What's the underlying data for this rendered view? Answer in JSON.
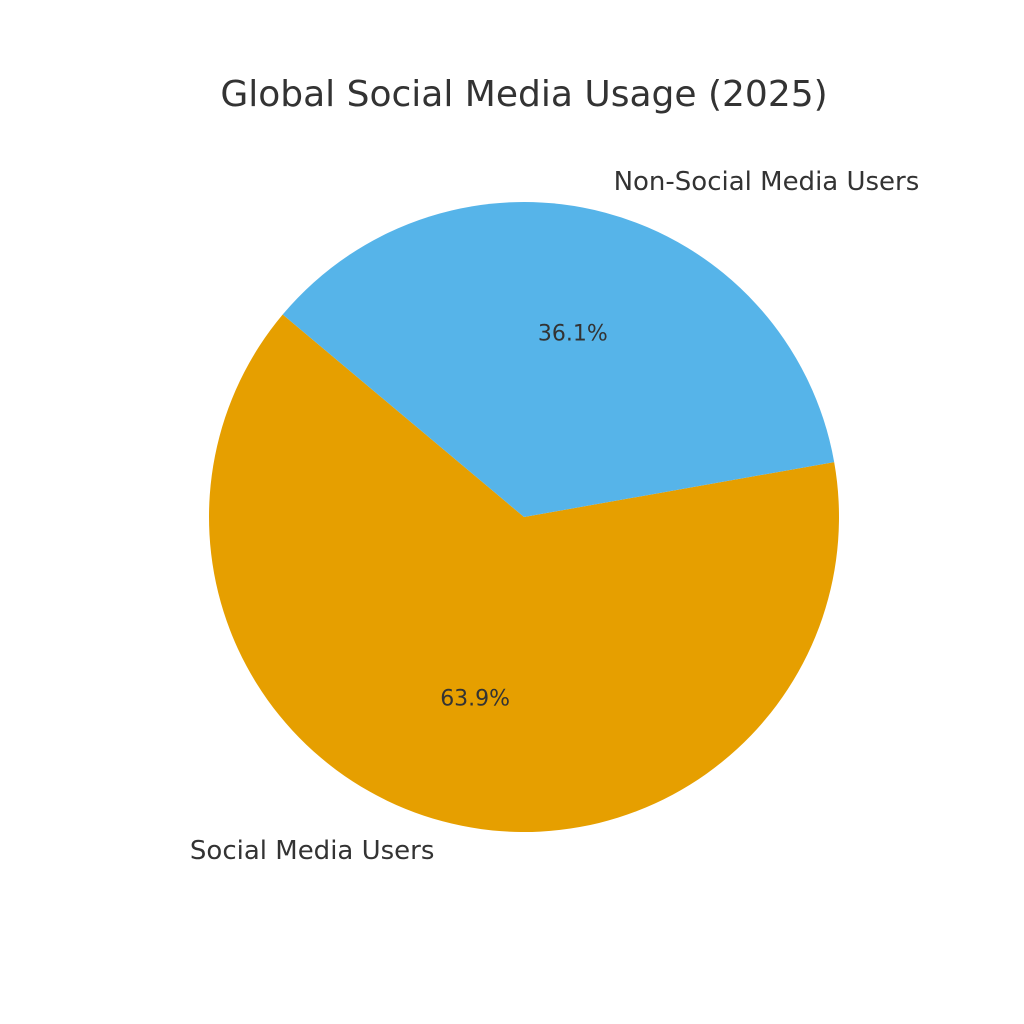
{
  "chart_data": {
    "type": "pie",
    "title": "Global Social Media Usage (2025)",
    "categories": [
      "Social Media Users",
      "Non-Social Media Users"
    ],
    "values": [
      63.9,
      36.1
    ],
    "value_labels": [
      "63.9%",
      "36.1%"
    ],
    "colors": [
      "#E69F00",
      "#56B4E9"
    ]
  }
}
